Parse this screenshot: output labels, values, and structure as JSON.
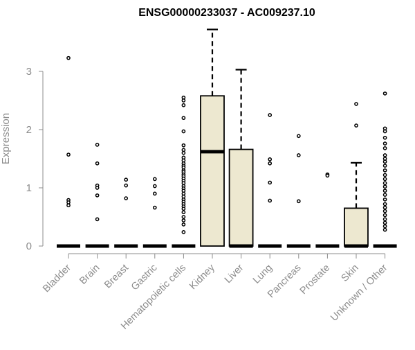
{
  "chart_data": {
    "type": "box",
    "title": "ENSG00000233037 - AC009237.10",
    "xlabel": "",
    "ylabel": "Expression",
    "ylim": [
      0,
      3.7
    ],
    "yticks": [
      0,
      1,
      2,
      3
    ],
    "grid": false,
    "colors": {
      "box_fill": "#ede8d0",
      "stroke": "#000000",
      "axis_text": "#8c8c8c"
    },
    "categories": [
      "Bladder",
      "Brain",
      "Breast",
      "Gastric",
      "Hematopoietic cells",
      "Kidney",
      "Liver",
      "Lung",
      "Pancreas",
      "Prostate",
      "Skin",
      "Unknown / Other"
    ],
    "boxes": [
      {
        "category": "Bladder",
        "q1": 0,
        "median": 0,
        "q3": 0,
        "whisker_low": 0,
        "whisker_high": 0,
        "outliers": [
          3.23,
          1.57,
          0.79,
          0.75,
          0.7
        ]
      },
      {
        "category": "Brain",
        "q1": 0,
        "median": 0,
        "q3": 0,
        "whisker_low": 0,
        "whisker_high": 0,
        "outliers": [
          1.74,
          1.42,
          1.04,
          1.0,
          0.87,
          0.46
        ]
      },
      {
        "category": "Breast",
        "q1": 0,
        "median": 0,
        "q3": 0,
        "whisker_low": 0,
        "whisker_high": 0,
        "outliers": [
          1.14,
          1.04,
          0.82
        ]
      },
      {
        "category": "Gastric",
        "q1": 0,
        "median": 0,
        "q3": 0,
        "whisker_low": 0,
        "whisker_high": 0,
        "outliers": [
          1.15,
          1.03,
          0.9,
          0.66
        ]
      },
      {
        "category": "Hematopoietic cells",
        "q1": 0,
        "median": 0,
        "q3": 0,
        "whisker_low": 0,
        "whisker_high": 0,
        "outliers": [
          2.55,
          2.5,
          2.42,
          2.2,
          1.97,
          1.73,
          1.65,
          1.6,
          1.52,
          1.47,
          1.42,
          1.38,
          1.35,
          1.3,
          1.27,
          1.23,
          1.2,
          1.16,
          1.12,
          1.08,
          1.03,
          0.99,
          0.95,
          0.9,
          0.85,
          0.8,
          0.76,
          0.72,
          0.68,
          0.64,
          0.58,
          0.5,
          0.44,
          0.37,
          0.24
        ]
      },
      {
        "category": "Kidney",
        "q1": 0,
        "median": 1.62,
        "q3": 2.58,
        "whisker_low": 0,
        "whisker_high": 3.72,
        "outliers": []
      },
      {
        "category": "Liver",
        "q1": 0,
        "median": 0,
        "q3": 1.66,
        "whisker_low": 0,
        "whisker_high": 3.03,
        "outliers": []
      },
      {
        "category": "Lung",
        "q1": 0,
        "median": 0,
        "q3": 0,
        "whisker_low": 0,
        "whisker_high": 0,
        "outliers": [
          2.25,
          1.49,
          1.42,
          1.09,
          0.78
        ]
      },
      {
        "category": "Pancreas",
        "q1": 0,
        "median": 0,
        "q3": 0,
        "whisker_low": 0,
        "whisker_high": 0,
        "outliers": [
          1.89,
          1.56,
          0.77
        ]
      },
      {
        "category": "Prostate",
        "q1": 0,
        "median": 0,
        "q3": 0,
        "whisker_low": 0,
        "whisker_high": 0,
        "outliers": [
          1.23,
          1.21
        ]
      },
      {
        "category": "Skin",
        "q1": 0,
        "median": 0,
        "q3": 0.65,
        "whisker_low": 0,
        "whisker_high": 1.43,
        "outliers": [
          2.44,
          2.07
        ]
      },
      {
        "category": "Unknown / Other",
        "q1": 0,
        "median": 0,
        "q3": 0,
        "whisker_low": 0,
        "whisker_high": 0,
        "outliers": [
          2.62,
          2.02,
          1.97,
          1.86,
          1.76,
          1.68,
          1.56,
          1.5,
          1.45,
          1.38,
          1.3,
          1.22,
          1.15,
          1.08,
          1.02,
          0.95,
          0.88,
          0.8,
          0.72,
          0.66,
          0.6,
          0.53,
          0.46,
          0.4,
          0.34,
          0.28
        ]
      }
    ]
  }
}
